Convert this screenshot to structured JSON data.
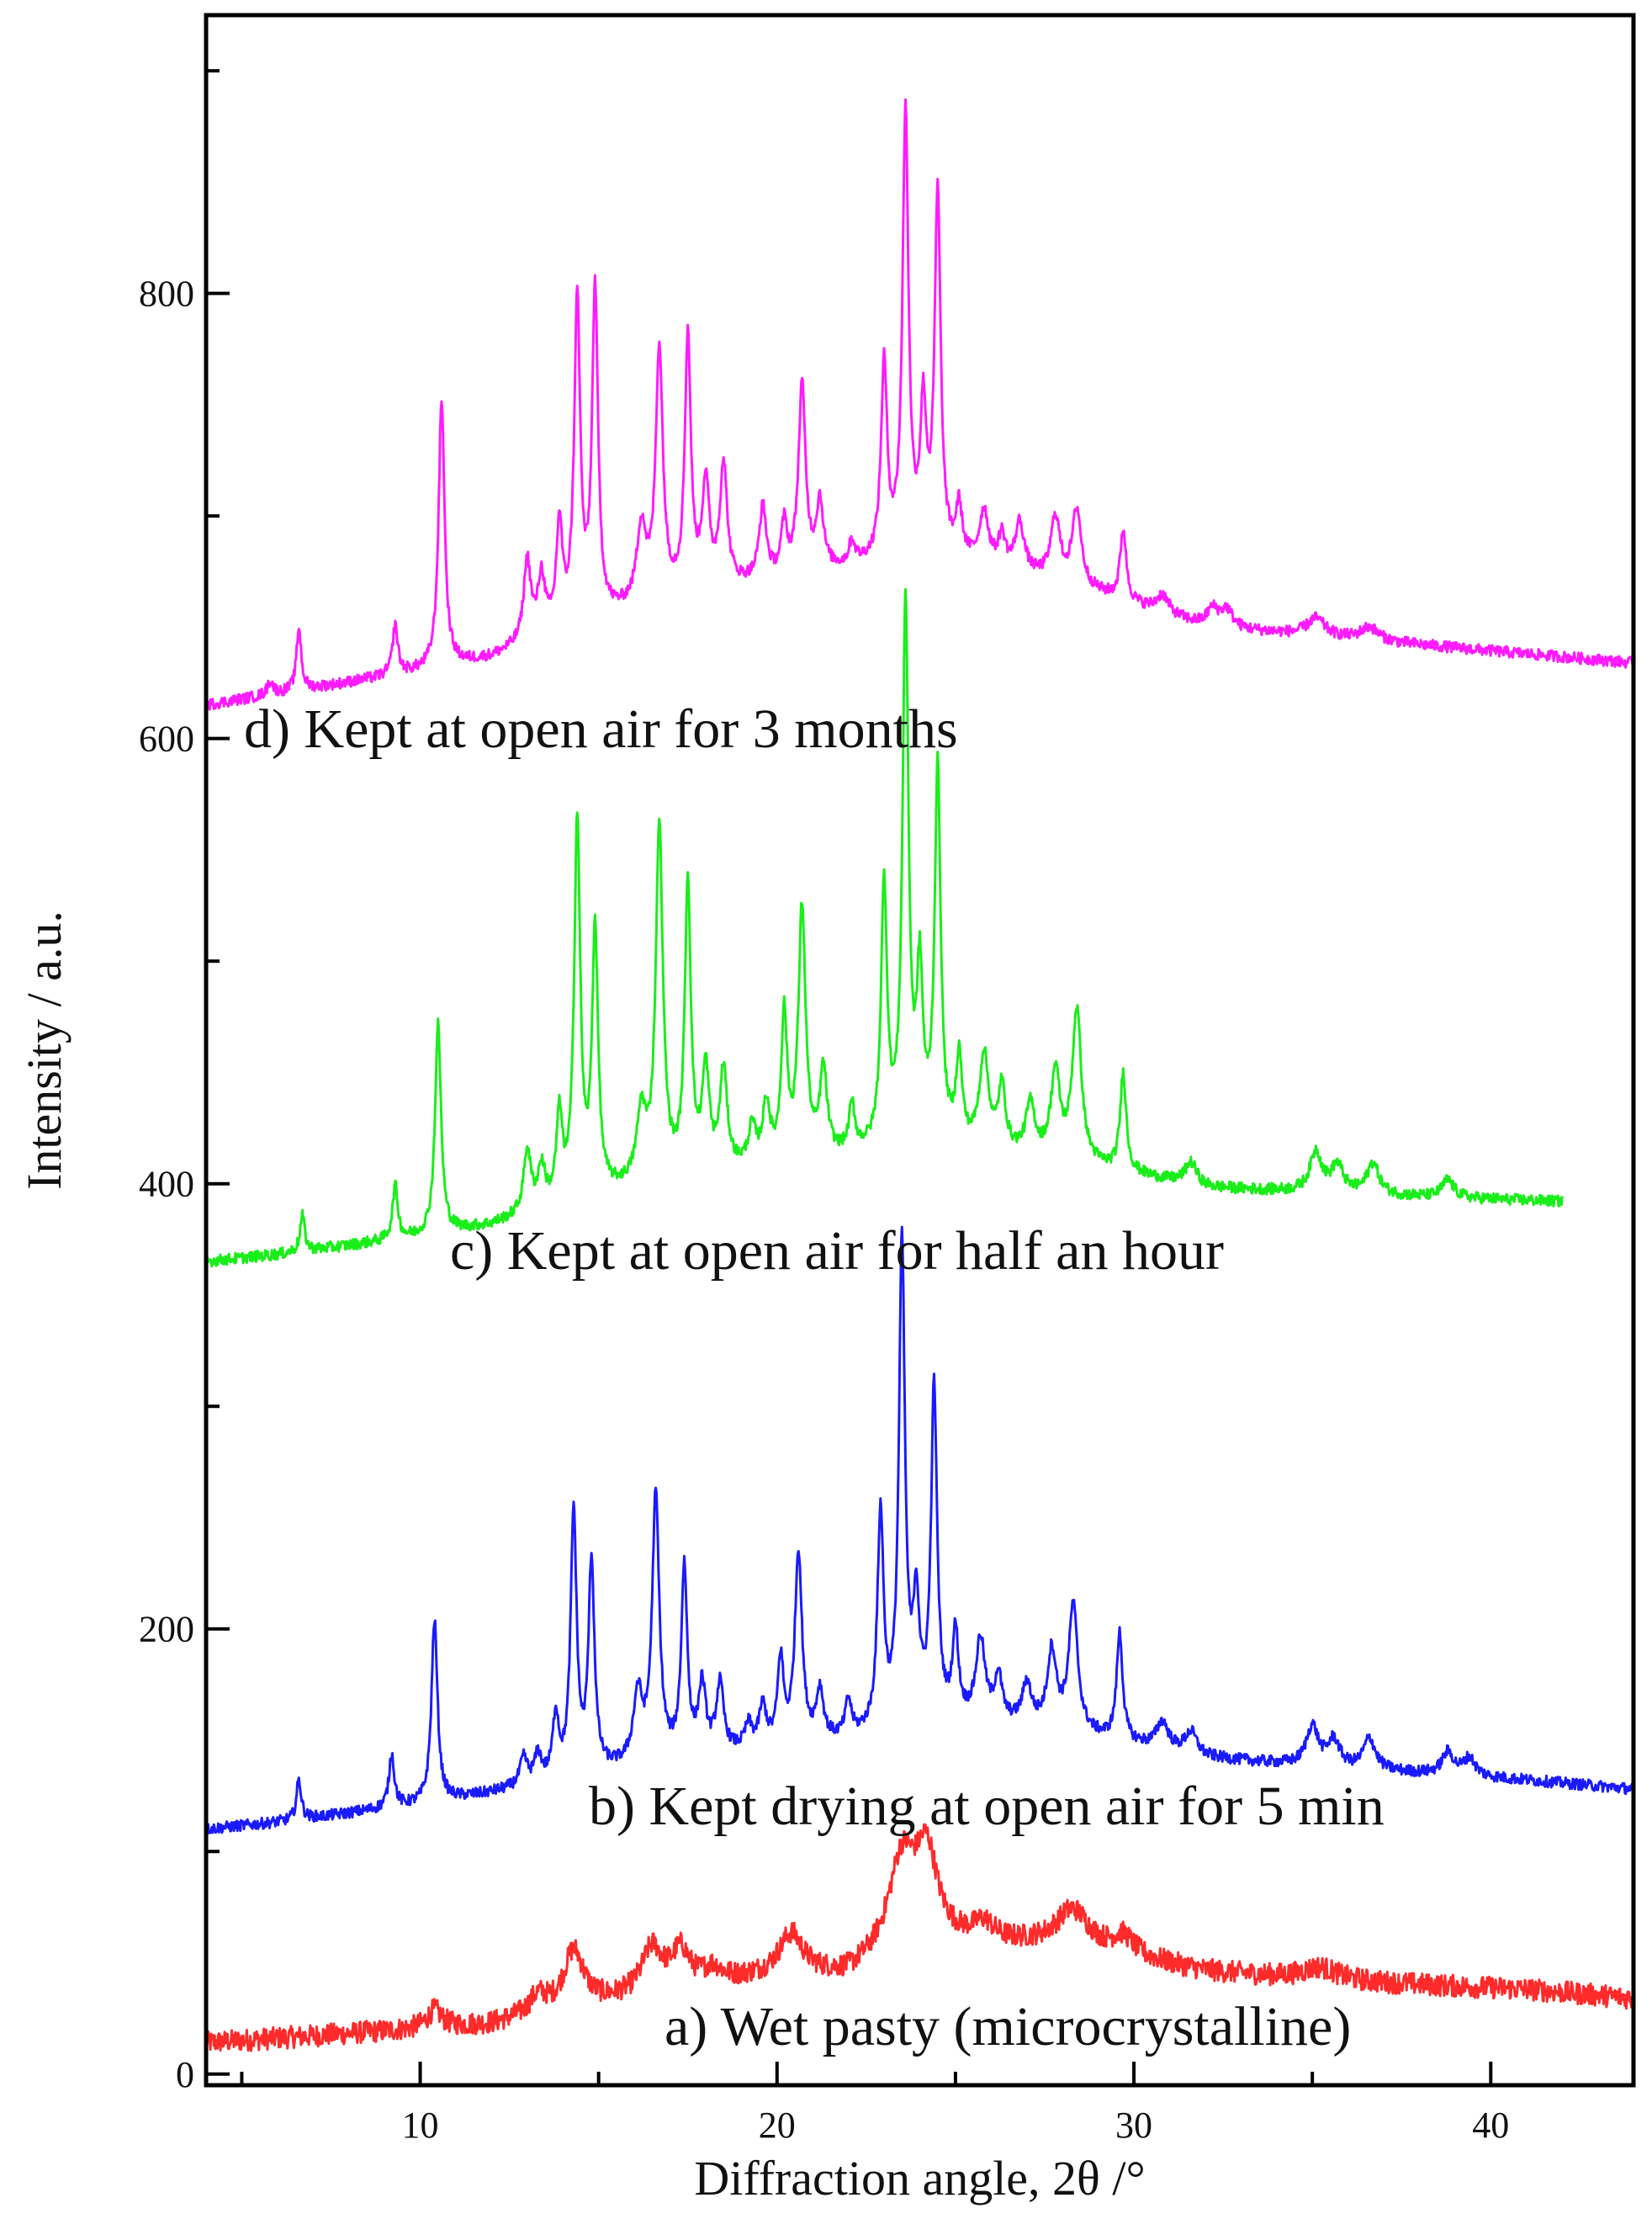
{
  "chart_data": {
    "type": "line",
    "xlabel": "Diffraction angle, 2θ /°",
    "ylabel": "Intensity / a.u.",
    "xlim": [
      4,
      44
    ],
    "ylim": [
      -5,
      925
    ],
    "x_ticks": [
      10,
      20,
      30,
      40
    ],
    "y_ticks": [
      0,
      200,
      400,
      600,
      800
    ],
    "grid": false,
    "legend": "none",
    "series": [
      {
        "id": "a",
        "annotation": "a) Wet pasty (microcrystalline)",
        "color": "#ff2a2a",
        "baseline": [
          [
            4,
            14
          ],
          [
            6,
            16
          ],
          [
            8,
            18
          ],
          [
            10,
            20
          ],
          [
            12,
            22
          ],
          [
            14,
            28
          ],
          [
            16,
            34
          ],
          [
            18,
            40
          ],
          [
            20,
            44
          ],
          [
            22,
            44
          ],
          [
            24,
            60
          ],
          [
            26,
            58
          ],
          [
            28,
            58
          ],
          [
            30,
            52
          ],
          [
            32,
            46
          ],
          [
            35,
            42
          ],
          [
            38,
            40
          ],
          [
            41,
            38
          ],
          [
            44,
            34
          ]
        ],
        "peaks": [
          [
            10.4,
            8,
            0.25
          ],
          [
            13.3,
            8,
            0.3
          ],
          [
            14.3,
            26,
            0.35
          ],
          [
            16.5,
            20,
            0.35
          ],
          [
            17.3,
            16,
            0.3
          ],
          [
            18.2,
            6,
            0.3
          ],
          [
            20.4,
            18,
            0.4
          ],
          [
            23.5,
            40,
            0.45
          ],
          [
            24.2,
            36,
            0.35
          ],
          [
            25.8,
            8,
            0.35
          ],
          [
            28.3,
            16,
            0.55
          ],
          [
            29.7,
            8,
            0.35
          ],
          [
            35.2,
            6,
            0.6
          ]
        ],
        "noise": 5
      },
      {
        "id": "b",
        "annotation": "b) Kept drying at open air for 5 min",
        "color": "#1a1aff",
        "baseline": [
          [
            4,
            110
          ],
          [
            6,
            113
          ],
          [
            8,
            117
          ],
          [
            10,
            121
          ],
          [
            12,
            126
          ],
          [
            14,
            132
          ],
          [
            16,
            138
          ],
          [
            18,
            143
          ],
          [
            20,
            146
          ],
          [
            22,
            150
          ],
          [
            24,
            158
          ],
          [
            26,
            158
          ],
          [
            28,
            154
          ],
          [
            30,
            148
          ],
          [
            32,
            142
          ],
          [
            35,
            138
          ],
          [
            38,
            135
          ],
          [
            41,
            132
          ],
          [
            44,
            128
          ]
        ],
        "peaks": [
          [
            6.6,
            18,
            0.08
          ],
          [
            9.2,
            24,
            0.09
          ],
          [
            10.4,
            82,
            0.1
          ],
          [
            12.9,
            12,
            0.12
          ],
          [
            13.3,
            12,
            0.12
          ],
          [
            13.8,
            28,
            0.1
          ],
          [
            14.3,
            118,
            0.1
          ],
          [
            14.8,
            94,
            0.1
          ],
          [
            16.1,
            30,
            0.15
          ],
          [
            16.6,
            118,
            0.12
          ],
          [
            17.4,
            84,
            0.1
          ],
          [
            17.9,
            30,
            0.12
          ],
          [
            18.4,
            30,
            0.12
          ],
          [
            19.2,
            10,
            0.12
          ],
          [
            19.6,
            18,
            0.12
          ],
          [
            20.1,
            38,
            0.1
          ],
          [
            20.6,
            86,
            0.12
          ],
          [
            21.2,
            22,
            0.12
          ],
          [
            22.0,
            16,
            0.1
          ],
          [
            22.9,
            96,
            0.1
          ],
          [
            23.5,
            215,
            0.1
          ],
          [
            23.9,
            50,
            0.1
          ],
          [
            24.4,
            148,
            0.1
          ],
          [
            25.0,
            38,
            0.1
          ],
          [
            25.7,
            36,
            0.15
          ],
          [
            26.2,
            20,
            0.12
          ],
          [
            27.0,
            18,
            0.15
          ],
          [
            27.7,
            34,
            0.15
          ],
          [
            28.3,
            56,
            0.15
          ],
          [
            29.6,
            48,
            0.1
          ],
          [
            30.8,
            12,
            0.2
          ],
          [
            31.6,
            10,
            0.2
          ],
          [
            35.0,
            18,
            0.2
          ],
          [
            35.6,
            12,
            0.2
          ],
          [
            36.6,
            14,
            0.2
          ],
          [
            38.8,
            10,
            0.2
          ],
          [
            39.4,
            8,
            0.2
          ]
        ],
        "noise": 2.5
      },
      {
        "id": "c",
        "annotation": "c) Kept at open air for half an hour",
        "color": "#1aee1a",
        "baseline": [
          [
            4,
            365
          ],
          [
            6,
            368
          ],
          [
            8,
            372
          ],
          [
            10,
            376
          ],
          [
            12,
            381
          ],
          [
            14,
            390
          ],
          [
            16,
            398
          ],
          [
            18,
            404
          ],
          [
            20,
            408
          ],
          [
            22,
            412
          ],
          [
            24,
            418
          ],
          [
            26,
            414
          ],
          [
            28,
            410
          ],
          [
            30,
            404
          ],
          [
            32,
            398
          ],
          [
            35,
            396
          ],
          [
            38,
            394
          ],
          [
            42,
            392
          ]
        ],
        "peaks": [
          [
            6.7,
            16,
            0.08
          ],
          [
            9.3,
            24,
            0.09
          ],
          [
            10.5,
            94,
            0.1
          ],
          [
            13.0,
            28,
            0.12
          ],
          [
            13.4,
            18,
            0.12
          ],
          [
            13.9,
            38,
            0.1
          ],
          [
            14.4,
            170,
            0.1
          ],
          [
            14.9,
            118,
            0.1
          ],
          [
            16.2,
            30,
            0.15
          ],
          [
            16.7,
            158,
            0.12
          ],
          [
            17.5,
            130,
            0.1
          ],
          [
            18.0,
            44,
            0.12
          ],
          [
            18.5,
            44,
            0.12
          ],
          [
            19.3,
            16,
            0.12
          ],
          [
            19.7,
            26,
            0.12
          ],
          [
            20.2,
            64,
            0.1
          ],
          [
            20.7,
            112,
            0.12
          ],
          [
            21.3,
            38,
            0.12
          ],
          [
            22.1,
            20,
            0.1
          ],
          [
            23.0,
            116,
            0.1
          ],
          [
            23.6,
            240,
            0.1
          ],
          [
            24.0,
            70,
            0.1
          ],
          [
            24.5,
            166,
            0.1
          ],
          [
            25.1,
            38,
            0.1
          ],
          [
            25.8,
            42,
            0.15
          ],
          [
            26.3,
            28,
            0.12
          ],
          [
            27.1,
            22,
            0.15
          ],
          [
            27.8,
            38,
            0.15
          ],
          [
            28.4,
            68,
            0.15
          ],
          [
            29.7,
            44,
            0.1
          ],
          [
            31.6,
            10,
            0.2
          ],
          [
            35.1,
            18,
            0.2
          ],
          [
            35.7,
            12,
            0.2
          ],
          [
            36.7,
            14,
            0.2
          ],
          [
            38.8,
            8,
            0.2
          ]
        ],
        "noise": 2.5,
        "x_end": 42
      },
      {
        "id": "d",
        "annotation": "d) Kept at open air for 3 months",
        "color": "#ff1aff",
        "baseline": [
          [
            4,
            615
          ],
          [
            6,
            620
          ],
          [
            8,
            625
          ],
          [
            10,
            630
          ],
          [
            12,
            636
          ],
          [
            14,
            648
          ],
          [
            16,
            658
          ],
          [
            18,
            666
          ],
          [
            20,
            671
          ],
          [
            22,
            676
          ],
          [
            24,
            684
          ],
          [
            26,
            676
          ],
          [
            28,
            670
          ],
          [
            30,
            660
          ],
          [
            32,
            650
          ],
          [
            35,
            646
          ],
          [
            38,
            642
          ],
          [
            41,
            638
          ],
          [
            44,
            634
          ]
        ],
        "peaks": [
          [
            5.8,
            6,
            0.1
          ],
          [
            6.6,
            28,
            0.08
          ],
          [
            9.3,
            22,
            0.09
          ],
          [
            10.6,
            120,
            0.1
          ],
          [
            13.0,
            36,
            0.12
          ],
          [
            13.4,
            26,
            0.12
          ],
          [
            13.9,
            46,
            0.1
          ],
          [
            14.4,
            144,
            0.1
          ],
          [
            14.9,
            146,
            0.1
          ],
          [
            16.2,
            34,
            0.15
          ],
          [
            16.7,
            112,
            0.12
          ],
          [
            17.5,
            114,
            0.1
          ],
          [
            18.0,
            46,
            0.12
          ],
          [
            18.5,
            54,
            0.12
          ],
          [
            19.6,
            32,
            0.12
          ],
          [
            20.2,
            22,
            0.1
          ],
          [
            20.7,
            84,
            0.12
          ],
          [
            21.2,
            30,
            0.12
          ],
          [
            22.1,
            10,
            0.1
          ],
          [
            23.0,
            86,
            0.1
          ],
          [
            23.6,
            196,
            0.1
          ],
          [
            24.1,
            60,
            0.1
          ],
          [
            24.5,
            160,
            0.1
          ],
          [
            25.1,
            22,
            0.1
          ],
          [
            25.8,
            24,
            0.15
          ],
          [
            26.3,
            14,
            0.12
          ],
          [
            26.8,
            22,
            0.15
          ],
          [
            27.8,
            28,
            0.15
          ],
          [
            28.4,
            34,
            0.15
          ],
          [
            29.7,
            32,
            0.1
          ],
          [
            30.8,
            8,
            0.2
          ],
          [
            32.2,
            8,
            0.2
          ],
          [
            32.6,
            8,
            0.2
          ],
          [
            35.1,
            8,
            0.3
          ],
          [
            36.6,
            6,
            0.3
          ]
        ],
        "noise": 2.5
      }
    ]
  }
}
